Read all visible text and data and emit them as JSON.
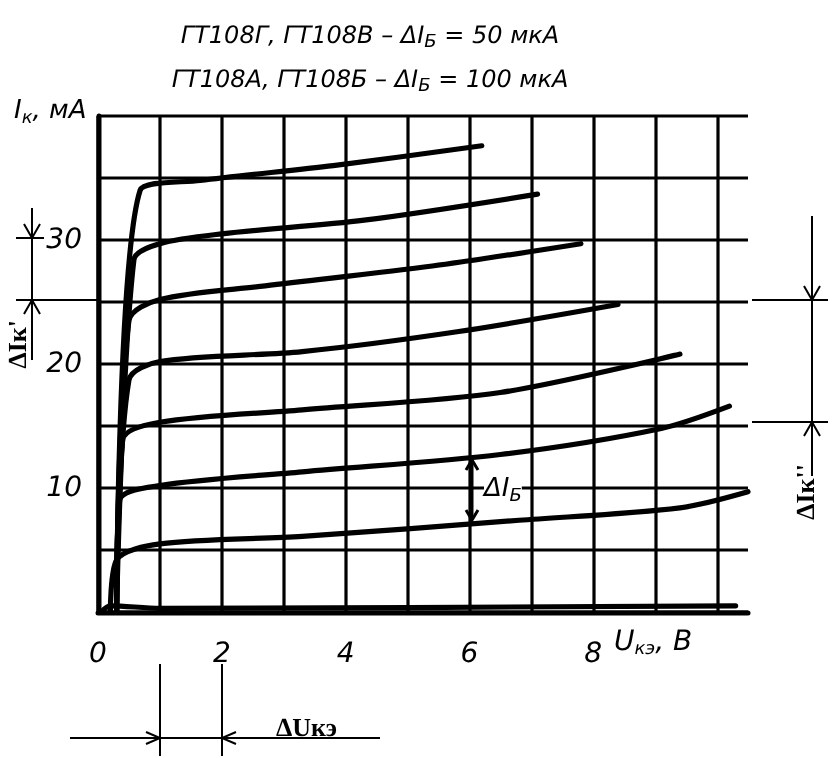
{
  "chart_data": {
    "type": "line",
    "title": "ГТ108Г, ГТ108В – ΔI$_{Б}$ = 50 мкА",
    "subtitle": "ГТ108А, ГТ108Б – ΔI$_{Б}$ = 100 мкА",
    "xlabel": "U$_{кэ}$, В",
    "ylabel": "I$_{к}$, мА",
    "xlim": [
      0,
      10.5
    ],
    "ylim": [
      0,
      40
    ],
    "xticks": [
      0,
      {
        "value": 1,
        "label": null
      },
      2,
      {
        "value": 3,
        "label": null
      },
      4,
      {
        "value": 5,
        "label": null
      },
      6,
      {
        "value": 7,
        "label": null
      },
      8,
      {
        "value": 9,
        "label": null
      },
      {
        "value": 10,
        "label": null
      }
    ],
    "yticks": [
      {
        "value": 0,
        "label": null
      },
      {
        "value": 5,
        "label": null
      },
      10,
      {
        "value": 15,
        "label": null
      },
      20,
      {
        "value": 25,
        "label": null
      },
      30,
      {
        "value": 35,
        "label": null
      },
      {
        "value": 40,
        "label": null
      }
    ],
    "grid": true,
    "marker": "none",
    "line_style": "solid",
    "series": [
      {
        "color": "#000000",
        "x": [
          0.3,
          0.68,
          1.65,
          3.8,
          6.2
        ],
        "values": [
          0,
          34,
          34.8,
          36,
          37.6
        ]
      },
      {
        "color": "#000000",
        "x": [
          0.3,
          0.58,
          1.0,
          2.0,
          4.3,
          7.1
        ],
        "values": [
          0,
          28.4,
          29.7,
          30.5,
          31.6,
          33.7
        ]
      },
      {
        "color": "#000000",
        "x": [
          0.3,
          0.5,
          1.0,
          2.7,
          5.4,
          7.8
        ],
        "values": [
          0,
          23.5,
          25.2,
          26.3,
          27.9,
          29.7
        ]
      },
      {
        "color": "#000000",
        "x": [
          0.3,
          0.5,
          1.0,
          3.3,
          5.8,
          8.4
        ],
        "values": [
          0,
          18.7,
          20.2,
          21,
          22.6,
          24.8
        ]
      },
      {
        "color": "#000000",
        "x": [
          0.3,
          0.4,
          1.0,
          3.3,
          6.5,
          9.4
        ],
        "values": [
          0,
          13.9,
          15.3,
          16.3,
          17.7,
          20.8
        ]
      },
      {
        "color": "#000000",
        "x": [
          0.3,
          0.35,
          1.0,
          3.3,
          6.5,
          9.1,
          10.2
        ],
        "values": [
          0,
          9,
          10.2,
          11.3,
          12.7,
          14.8,
          16.6
        ]
      },
      {
        "color": "#000000",
        "x": [
          0.2,
          0.3,
          1.0,
          3.3,
          6.8,
          9.4,
          10.5
        ],
        "values": [
          0,
          4.2,
          5.5,
          6.1,
          7.4,
          8.4,
          9.7
        ]
      },
      {
        "color": "#000000",
        "x": [
          0.05,
          0.2,
          1.0,
          10.3
        ],
        "values": [
          0,
          0.5,
          0.3,
          0.5
        ]
      }
    ],
    "annotations": [
      "ΔI$_{Б}$",
      "ΔIк'",
      "ΔIк''",
      "ΔUкэ"
    ]
  }
}
